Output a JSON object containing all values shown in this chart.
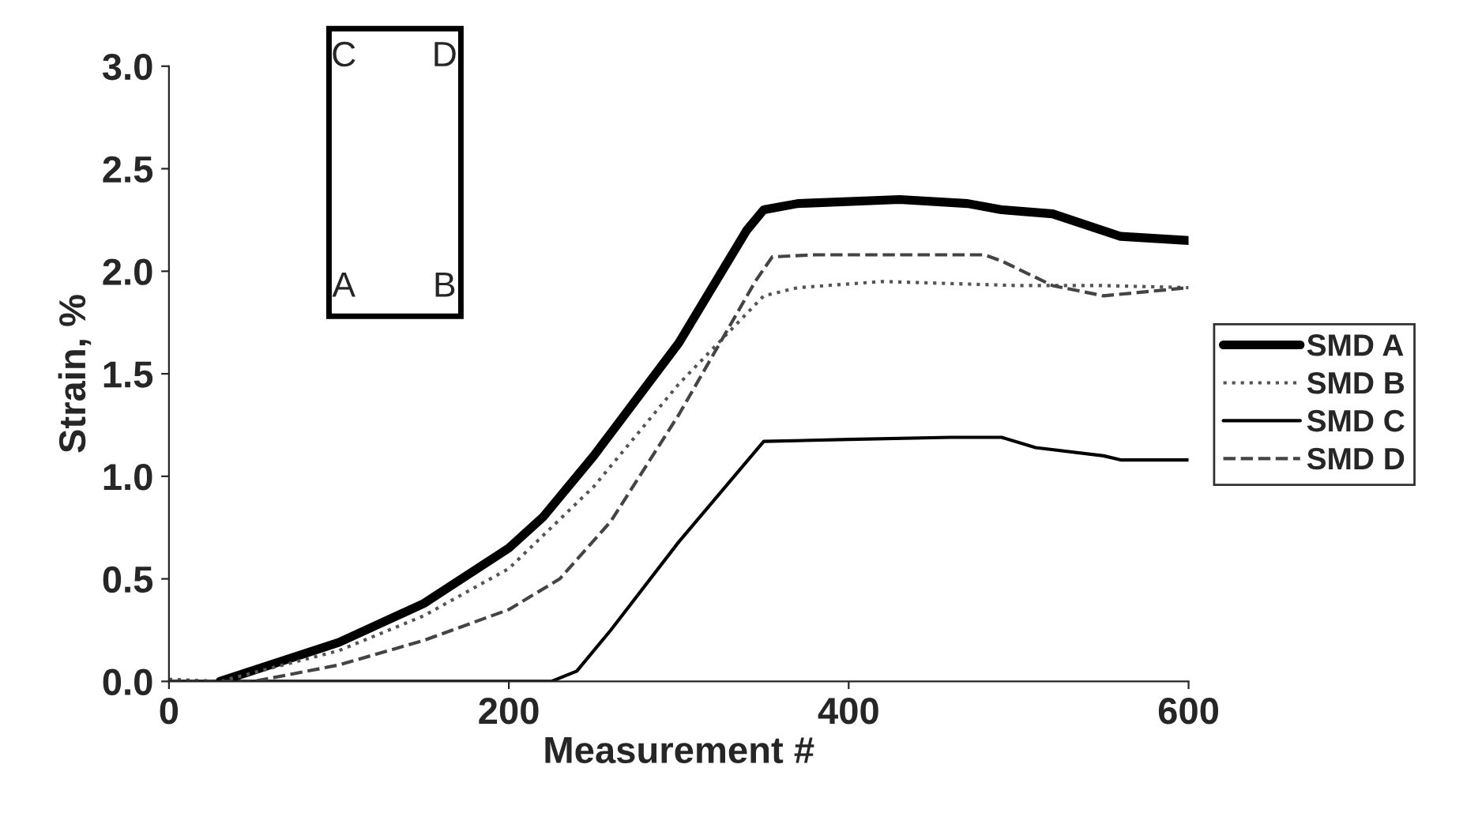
{
  "chart_data": {
    "type": "line",
    "xlabel": "Measurement #",
    "ylabel": "Strain, %",
    "xlim": [
      0,
      600
    ],
    "ylim": [
      0,
      3.0
    ],
    "xticks": [
      0,
      200,
      400,
      600
    ],
    "yticks": [
      {
        "value": 0,
        "label": "0.0"
      },
      {
        "value": 0.5,
        "label": "0.5"
      },
      {
        "value": 1.0,
        "label": "1.0"
      },
      {
        "value": 1.5,
        "label": "1.5"
      },
      {
        "value": 2.0,
        "label": "2.0"
      },
      {
        "value": 2.5,
        "label": "2.5"
      },
      {
        "value": 3.0,
        "label": "3.0"
      }
    ],
    "grid": false,
    "legend": "right",
    "marker": "none",
    "annotations": [
      "C",
      "D",
      "A",
      "B"
    ],
    "series": [
      {
        "name": "SMD A",
        "color": "#000000",
        "line_style": "solid",
        "x": [
          30,
          100,
          150,
          200,
          220,
          250,
          300,
          340,
          350,
          370,
          430,
          470,
          490,
          520,
          560,
          600
        ],
        "values": [
          0,
          0.19,
          0.38,
          0.65,
          0.8,
          1.1,
          1.65,
          2.2,
          2.3,
          2.33,
          2.35,
          2.33,
          2.3,
          2.28,
          2.17,
          2.15
        ]
      },
      {
        "name": "SMD B",
        "color": "#555555",
        "line_style": "dotted",
        "x": [
          0,
          30,
          100,
          150,
          200,
          250,
          300,
          350,
          370,
          420,
          500,
          550,
          600
        ],
        "values": [
          0.01,
          0,
          0.15,
          0.32,
          0.55,
          0.95,
          1.45,
          1.88,
          1.92,
          1.95,
          1.93,
          1.93,
          1.92
        ]
      },
      {
        "name": "SMD C",
        "color": "#000000",
        "line_style": "solid",
        "x": [
          0,
          60,
          210,
          225,
          240,
          260,
          300,
          350,
          400,
          460,
          490,
          510,
          550,
          560,
          600
        ],
        "values": [
          0,
          0,
          0,
          0,
          0.05,
          0.25,
          0.68,
          1.17,
          1.18,
          1.19,
          1.19,
          1.14,
          1.1,
          1.08,
          1.08
        ]
      },
      {
        "name": "SMD D",
        "color": "#444444",
        "line_style": "dashed",
        "x": [
          0,
          50,
          100,
          150,
          200,
          230,
          260,
          300,
          345,
          355,
          380,
          440,
          480,
          490,
          520,
          550,
          600
        ],
        "values": [
          0,
          0,
          0.08,
          0.2,
          0.35,
          0.5,
          0.78,
          1.3,
          1.95,
          2.07,
          2.08,
          2.08,
          2.08,
          2.05,
          1.93,
          1.88,
          1.92
        ]
      }
    ]
  }
}
